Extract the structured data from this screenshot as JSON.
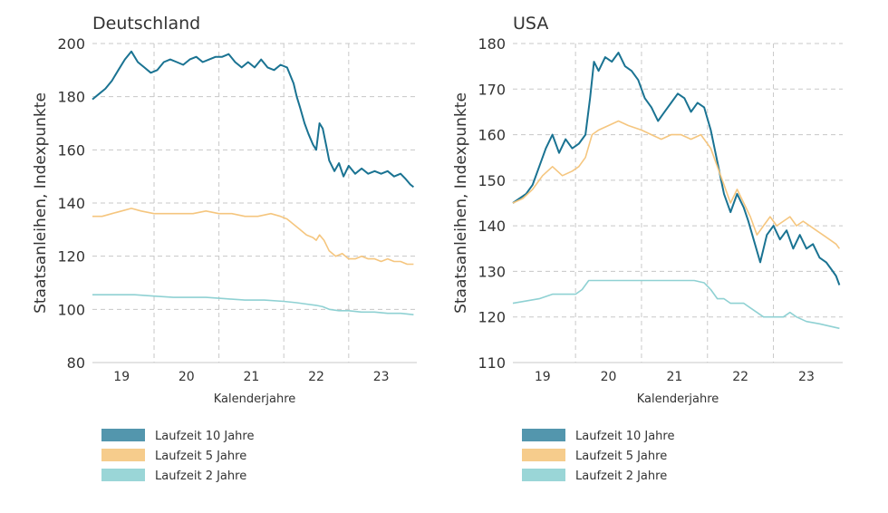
{
  "chart_data": [
    {
      "type": "line",
      "title": "Deutschland",
      "xlabel": "Kalenderjahre",
      "ylabel": "Staatsanleihen, Indexpunkte",
      "xlim": [
        2018.55,
        2023.55
      ],
      "ylim": [
        80,
        200
      ],
      "yticks": [
        80,
        100,
        120,
        140,
        160,
        180,
        200
      ],
      "xtick_labels": [
        "19",
        "20",
        "21",
        "22",
        "23"
      ],
      "xtick_positions": [
        2019.0,
        2020.0,
        2021.0,
        2022.0,
        2023.0
      ],
      "year_boundaries": [
        2019.5,
        2020.5,
        2021.5,
        2022.5
      ],
      "legend_position": "bottom-left",
      "series": [
        {
          "name": "Laufzeit 10 Jahre",
          "color": "#1a7392",
          "points": [
            [
              2018.55,
              179
            ],
            [
              2018.65,
              181
            ],
            [
              2018.75,
              183
            ],
            [
              2018.85,
              186
            ],
            [
              2018.95,
              190
            ],
            [
              2019.05,
              194
            ],
            [
              2019.15,
              197
            ],
            [
              2019.25,
              193
            ],
            [
              2019.35,
              191
            ],
            [
              2019.45,
              189
            ],
            [
              2019.55,
              190
            ],
            [
              2019.65,
              193
            ],
            [
              2019.75,
              194
            ],
            [
              2019.85,
              193
            ],
            [
              2019.95,
              192
            ],
            [
              2020.05,
              194
            ],
            [
              2020.15,
              195
            ],
            [
              2020.25,
              193
            ],
            [
              2020.35,
              194
            ],
            [
              2020.45,
              195
            ],
            [
              2020.55,
              195
            ],
            [
              2020.65,
              196
            ],
            [
              2020.75,
              193
            ],
            [
              2020.85,
              191
            ],
            [
              2020.95,
              193
            ],
            [
              2021.05,
              191
            ],
            [
              2021.15,
              194
            ],
            [
              2021.25,
              191
            ],
            [
              2021.35,
              190
            ],
            [
              2021.45,
              192
            ],
            [
              2021.55,
              191
            ],
            [
              2021.65,
              185
            ],
            [
              2021.7,
              180
            ],
            [
              2021.75,
              176
            ],
            [
              2021.82,
              170
            ],
            [
              2021.88,
              166
            ],
            [
              2021.95,
              162
            ],
            [
              2022.0,
              160
            ],
            [
              2022.05,
              170
            ],
            [
              2022.1,
              168
            ],
            [
              2022.15,
              162
            ],
            [
              2022.2,
              156
            ],
            [
              2022.28,
              152
            ],
            [
              2022.35,
              155
            ],
            [
              2022.42,
              150
            ],
            [
              2022.5,
              154
            ],
            [
              2022.6,
              151
            ],
            [
              2022.7,
              153
            ],
            [
              2022.8,
              151
            ],
            [
              2022.9,
              152
            ],
            [
              2023.0,
              151
            ],
            [
              2023.1,
              152
            ],
            [
              2023.2,
              150
            ],
            [
              2023.3,
              151
            ],
            [
              2023.38,
              149
            ],
            [
              2023.45,
              147
            ],
            [
              2023.5,
              146
            ]
          ]
        },
        {
          "name": "Laufzeit 5 Jahre",
          "color": "#f5c67f",
          "points": [
            [
              2018.55,
              135
            ],
            [
              2018.7,
              135
            ],
            [
              2018.85,
              136
            ],
            [
              2019.0,
              137
            ],
            [
              2019.15,
              138
            ],
            [
              2019.3,
              137
            ],
            [
              2019.5,
              136
            ],
            [
              2019.7,
              136
            ],
            [
              2019.9,
              136
            ],
            [
              2020.1,
              136
            ],
            [
              2020.3,
              137
            ],
            [
              2020.5,
              136
            ],
            [
              2020.7,
              136
            ],
            [
              2020.9,
              135
            ],
            [
              2021.1,
              135
            ],
            [
              2021.3,
              136
            ],
            [
              2021.45,
              135
            ],
            [
              2021.55,
              134
            ],
            [
              2021.65,
              132
            ],
            [
              2021.75,
              130
            ],
            [
              2021.85,
              128
            ],
            [
              2021.95,
              127
            ],
            [
              2022.0,
              126
            ],
            [
              2022.05,
              128
            ],
            [
              2022.12,
              126
            ],
            [
              2022.2,
              122
            ],
            [
              2022.3,
              120
            ],
            [
              2022.4,
              121
            ],
            [
              2022.5,
              119
            ],
            [
              2022.6,
              119
            ],
            [
              2022.7,
              120
            ],
            [
              2022.8,
              119
            ],
            [
              2022.9,
              119
            ],
            [
              2023.0,
              118
            ],
            [
              2023.1,
              119
            ],
            [
              2023.2,
              118
            ],
            [
              2023.3,
              118
            ],
            [
              2023.4,
              117
            ],
            [
              2023.5,
              117
            ]
          ]
        },
        {
          "name": "Laufzeit 2 Jahre",
          "color": "#8fd1d3",
          "points": [
            [
              2018.55,
              105.5
            ],
            [
              2018.75,
              105.5
            ],
            [
              2019.0,
              105.5
            ],
            [
              2019.2,
              105.5
            ],
            [
              2019.5,
              105
            ],
            [
              2019.8,
              104.5
            ],
            [
              2020.0,
              104.5
            ],
            [
              2020.3,
              104.5
            ],
            [
              2020.6,
              104
            ],
            [
              2020.9,
              103.5
            ],
            [
              2021.2,
              103.5
            ],
            [
              2021.5,
              103
            ],
            [
              2021.7,
              102.5
            ],
            [
              2021.85,
              102
            ],
            [
              2022.0,
              101.5
            ],
            [
              2022.1,
              101
            ],
            [
              2022.2,
              100
            ],
            [
              2022.35,
              99.5
            ],
            [
              2022.5,
              99.5
            ],
            [
              2022.7,
              99
            ],
            [
              2022.9,
              99
            ],
            [
              2023.1,
              98.5
            ],
            [
              2023.3,
              98.5
            ],
            [
              2023.5,
              98
            ]
          ]
        }
      ]
    },
    {
      "type": "line",
      "title": "USA",
      "xlabel": "Kalenderjahre",
      "ylabel": "Staatsanleihen, Indexpunkte",
      "xlim": [
        2018.55,
        2023.55
      ],
      "ylim": [
        110,
        180
      ],
      "yticks": [
        110,
        120,
        130,
        140,
        150,
        160,
        170,
        180
      ],
      "xtick_labels": [
        "19",
        "20",
        "21",
        "22",
        "23"
      ],
      "xtick_positions": [
        2019.0,
        2020.0,
        2021.0,
        2022.0,
        2023.0
      ],
      "year_boundaries": [
        2019.5,
        2020.5,
        2021.5,
        2022.5
      ],
      "legend_position": "bottom-left",
      "series": [
        {
          "name": "Laufzeit 10 Jahre",
          "color": "#1a7392",
          "points": [
            [
              2018.55,
              145
            ],
            [
              2018.65,
              146
            ],
            [
              2018.75,
              147
            ],
            [
              2018.85,
              149
            ],
            [
              2018.95,
              153
            ],
            [
              2019.05,
              157
            ],
            [
              2019.15,
              160
            ],
            [
              2019.25,
              156
            ],
            [
              2019.35,
              159
            ],
            [
              2019.45,
              157
            ],
            [
              2019.55,
              158
            ],
            [
              2019.65,
              160
            ],
            [
              2019.72,
              168
            ],
            [
              2019.78,
              176
            ],
            [
              2019.85,
              174
            ],
            [
              2019.95,
              177
            ],
            [
              2020.05,
              176
            ],
            [
              2020.15,
              178
            ],
            [
              2020.25,
              175
            ],
            [
              2020.35,
              174
            ],
            [
              2020.45,
              172
            ],
            [
              2020.55,
              168
            ],
            [
              2020.65,
              166
            ],
            [
              2020.75,
              163
            ],
            [
              2020.85,
              165
            ],
            [
              2020.95,
              167
            ],
            [
              2021.05,
              169
            ],
            [
              2021.15,
              168
            ],
            [
              2021.25,
              165
            ],
            [
              2021.35,
              167
            ],
            [
              2021.45,
              166
            ],
            [
              2021.55,
              161
            ],
            [
              2021.65,
              154
            ],
            [
              2021.75,
              147
            ],
            [
              2021.85,
              143
            ],
            [
              2021.95,
              147
            ],
            [
              2022.05,
              144
            ],
            [
              2022.12,
              141
            ],
            [
              2022.2,
              137
            ],
            [
              2022.3,
              132
            ],
            [
              2022.4,
              138
            ],
            [
              2022.5,
              140
            ],
            [
              2022.6,
              137
            ],
            [
              2022.7,
              139
            ],
            [
              2022.8,
              135
            ],
            [
              2022.9,
              138
            ],
            [
              2023.0,
              135
            ],
            [
              2023.1,
              136
            ],
            [
              2023.2,
              133
            ],
            [
              2023.3,
              132
            ],
            [
              2023.4,
              130
            ],
            [
              2023.45,
              129
            ],
            [
              2023.5,
              127
            ]
          ]
        },
        {
          "name": "Laufzeit 5 Jahre",
          "color": "#f5c67f",
          "points": [
            [
              2018.55,
              145
            ],
            [
              2018.7,
              146
            ],
            [
              2018.85,
              148
            ],
            [
              2019.0,
              151
            ],
            [
              2019.15,
              153
            ],
            [
              2019.3,
              151
            ],
            [
              2019.45,
              152
            ],
            [
              2019.55,
              153
            ],
            [
              2019.65,
              155
            ],
            [
              2019.75,
              160
            ],
            [
              2019.85,
              161
            ],
            [
              2020.0,
              162
            ],
            [
              2020.15,
              163
            ],
            [
              2020.3,
              162
            ],
            [
              2020.5,
              161
            ],
            [
              2020.65,
              160
            ],
            [
              2020.8,
              159
            ],
            [
              2020.95,
              160
            ],
            [
              2021.1,
              160
            ],
            [
              2021.25,
              159
            ],
            [
              2021.4,
              160
            ],
            [
              2021.55,
              157
            ],
            [
              2021.65,
              153
            ],
            [
              2021.75,
              149
            ],
            [
              2021.85,
              145
            ],
            [
              2021.95,
              148
            ],
            [
              2022.05,
              145
            ],
            [
              2022.15,
              142
            ],
            [
              2022.25,
              138
            ],
            [
              2022.35,
              140
            ],
            [
              2022.45,
              142
            ],
            [
              2022.55,
              140
            ],
            [
              2022.65,
              141
            ],
            [
              2022.75,
              142
            ],
            [
              2022.85,
              140
            ],
            [
              2022.95,
              141
            ],
            [
              2023.05,
              140
            ],
            [
              2023.15,
              139
            ],
            [
              2023.25,
              138
            ],
            [
              2023.35,
              137
            ],
            [
              2023.45,
              136
            ],
            [
              2023.5,
              135
            ]
          ]
        },
        {
          "name": "Laufzeit 2 Jahre",
          "color": "#8fd1d3",
          "points": [
            [
              2018.55,
              123
            ],
            [
              2018.75,
              123.5
            ],
            [
              2018.95,
              124
            ],
            [
              2019.15,
              125
            ],
            [
              2019.35,
              125
            ],
            [
              2019.5,
              125
            ],
            [
              2019.6,
              126
            ],
            [
              2019.7,
              128
            ],
            [
              2019.9,
              128
            ],
            [
              2020.1,
              128
            ],
            [
              2020.4,
              128
            ],
            [
              2020.7,
              128
            ],
            [
              2021.0,
              128
            ],
            [
              2021.3,
              128
            ],
            [
              2021.45,
              127.5
            ],
            [
              2021.55,
              126
            ],
            [
              2021.65,
              124
            ],
            [
              2021.75,
              124
            ],
            [
              2021.85,
              123
            ],
            [
              2021.95,
              123
            ],
            [
              2022.05,
              123
            ],
            [
              2022.15,
              122
            ],
            [
              2022.25,
              121
            ],
            [
              2022.35,
              120
            ],
            [
              2022.5,
              120
            ],
            [
              2022.65,
              120
            ],
            [
              2022.75,
              121
            ],
            [
              2022.85,
              120
            ],
            [
              2023.0,
              119
            ],
            [
              2023.2,
              118.5
            ],
            [
              2023.35,
              118
            ],
            [
              2023.5,
              117.5
            ]
          ]
        }
      ]
    }
  ]
}
